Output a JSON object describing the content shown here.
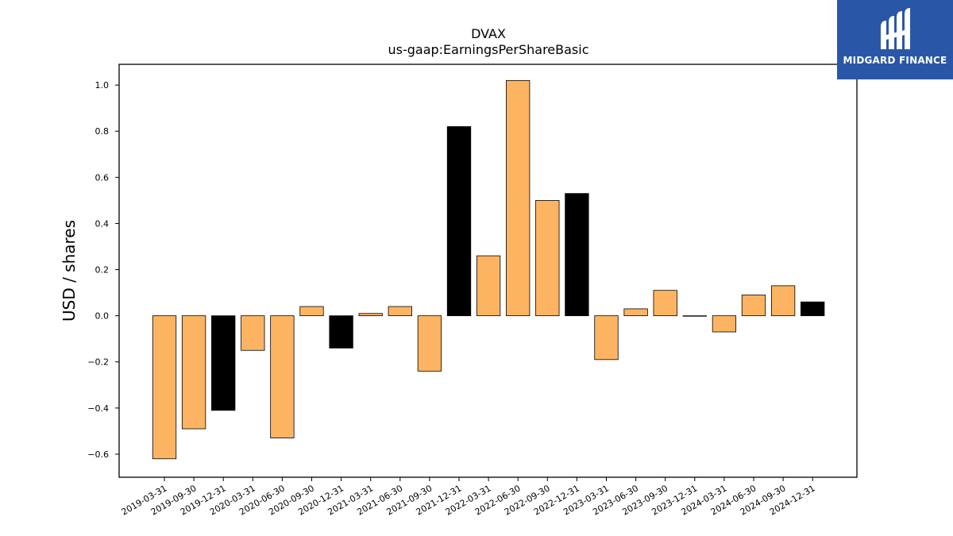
{
  "chart_data": {
    "type": "bar",
    "title": "DVAX",
    "subtitle": "us-gaap:EarningsPerShareBasic",
    "ylabel": "USD / shares",
    "xlabel": "",
    "ylim": [
      -0.7,
      1.09
    ],
    "yticks": [
      -0.6,
      -0.4,
      -0.2,
      0.0,
      0.2,
      0.4,
      0.6,
      0.8,
      1.0
    ],
    "grid": false,
    "colors": {
      "quarter": "#fdb462",
      "year_end": "#000000",
      "edge": "#000000"
    },
    "categories": [
      "2019-03-31",
      "2019-09-30",
      "2019-12-31",
      "2020-03-31",
      "2020-06-30",
      "2020-09-30",
      "2020-12-31",
      "2021-03-31",
      "2021-06-30",
      "2021-09-30",
      "2021-12-31",
      "2022-03-31",
      "2022-06-30",
      "2022-09-30",
      "2022-12-31",
      "2023-03-31",
      "2023-06-30",
      "2023-09-30",
      "2023-12-31",
      "2024-03-31",
      "2024-06-30",
      "2024-09-30",
      "2024-12-31"
    ],
    "values": [
      -0.62,
      -0.49,
      -0.41,
      -0.15,
      -0.53,
      0.04,
      -0.14,
      0.01,
      0.04,
      -0.24,
      0.82,
      0.26,
      1.02,
      0.5,
      0.53,
      -0.19,
      0.03,
      0.11,
      0.0,
      -0.07,
      0.09,
      0.13,
      0.06
    ]
  },
  "logo": {
    "text": "MIDGARD FINANCE",
    "icon": "midgard-finance-logo-icon"
  }
}
